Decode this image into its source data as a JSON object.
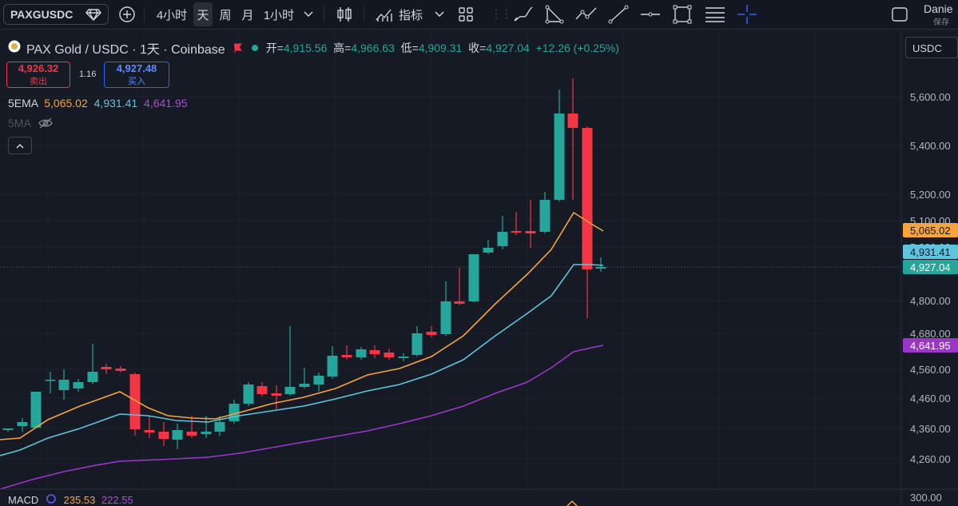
{
  "toolbar": {
    "symbol": "PAXGUSDC",
    "interval_4h": "4小时",
    "interval_day": "天",
    "interval_week": "周",
    "interval_month": "月",
    "interval_1h": "1小时",
    "indicators_label": "指标",
    "user_name": "Danie",
    "save_label": "保存"
  },
  "legend": {
    "title": "PAX Gold / USDC · 1天 · Coinbase",
    "open_label": "开=",
    "open": "4,915.56",
    "high_label": "高=",
    "high": "4,966.63",
    "low_label": "低=",
    "low": "4,909.31",
    "close_label": "收=",
    "close": "4,927.04",
    "change": "+12.26 (+0.25%)"
  },
  "trade": {
    "sell_price": "4,926.32",
    "sell_label": "卖出",
    "spread": "1.16",
    "buy_price": "4,927.48",
    "buy_label": "买入"
  },
  "indicators": {
    "ema_label": "5EMA",
    "ema_1": "5,065.02",
    "ema_2": "4,931.41",
    "ema_3": "4,641.95",
    "ma_label": "5MA",
    "macd_label": "MACD",
    "macd_1": "235.53",
    "macd_2": "222.55"
  },
  "price_axis": {
    "currency": "USDC",
    "ticks": [
      "5,600.00",
      "5,400.00",
      "5,200.00",
      "5,100.00",
      "5,000.00",
      "4,800.00",
      "4,680.00",
      "4,560.00",
      "4,460.00",
      "4,360.00",
      "4,260.00"
    ],
    "macd_tick": "300.00",
    "badges": {
      "ema_orange": "5,065.02",
      "ema_blue": "4,931.41",
      "last_price": "4,927.04",
      "ema_purple": "4,641.95"
    }
  },
  "colors": {
    "up": "#26a69a",
    "down": "#f23645",
    "ema_orange": "#f7a43b",
    "ema_blue": "#5fc4de",
    "ema_purple": "#9c36c9"
  }
}
